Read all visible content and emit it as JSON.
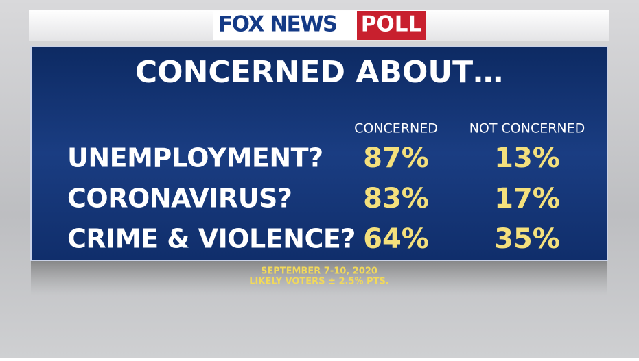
{
  "header": {
    "logo_brand": "FOX NEWS",
    "logo_tag": "POLL"
  },
  "title": "CONCERNED ABOUT…",
  "table": {
    "columns": [
      "CONCERNED",
      "NOT CONCERNED"
    ],
    "rows": [
      [
        "UNEMPLOYMENT?",
        "87%",
        "13%"
      ],
      [
        "CORONAVIRUS?",
        "83%",
        "17%"
      ],
      [
        "CRIME & VIOLENCE?",
        "64%",
        "35%"
      ]
    ]
  },
  "footer": {
    "dates": "SEPTEMBER 7-10, 2020",
    "sample": "LIKELY VOTERS ± 2.5% PTS."
  }
}
